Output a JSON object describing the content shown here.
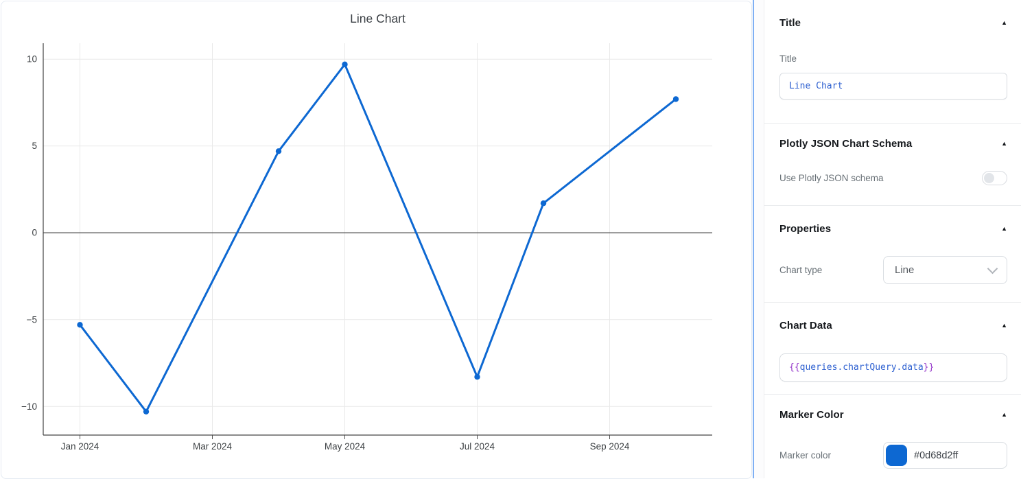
{
  "icons": {
    "collapse": "▲"
  },
  "chart_data": {
    "type": "line",
    "title": "Line Chart",
    "x": [
      "Jan 2024",
      "Feb 2024",
      "Apr 2024",
      "May 2024",
      "Jul 2024",
      "Aug 2024",
      "Oct 2024"
    ],
    "y": [
      -5.3,
      -10.3,
      4.7,
      9.7,
      -8.3,
      1.7,
      7.7
    ],
    "x_tick_labels": [
      "Jan 2024",
      "Mar 2024",
      "May 2024",
      "Jul 2024",
      "Sep 2024"
    ],
    "y_tick_values": [
      10,
      5,
      0,
      -5,
      -10
    ],
    "ylim": [
      -11.65,
      10.8
    ],
    "xlabel": "",
    "ylabel": "",
    "grid": true,
    "legend": false,
    "line_color": "#0d68d2",
    "marker_color": "#0d68d2"
  },
  "panel": {
    "sections": {
      "title": {
        "header": "Title",
        "field_label": "Title",
        "field_value": "Line Chart"
      },
      "plotly_schema": {
        "header": "Plotly JSON Chart Schema",
        "toggle_label": "Use Plotly JSON schema",
        "toggle_on": false
      },
      "properties": {
        "header": "Properties",
        "chart_type_label": "Chart type",
        "chart_type_value": "Line"
      },
      "chart_data_field": {
        "header": "Chart Data",
        "value_open": "{{",
        "value_inner": "queries.chartQuery.data",
        "value_close": "}}"
      },
      "marker_color": {
        "header": "Marker Color",
        "field_label": "Marker color",
        "value": "#0d68d2ff",
        "swatch_color": "#0d68d2"
      }
    }
  }
}
